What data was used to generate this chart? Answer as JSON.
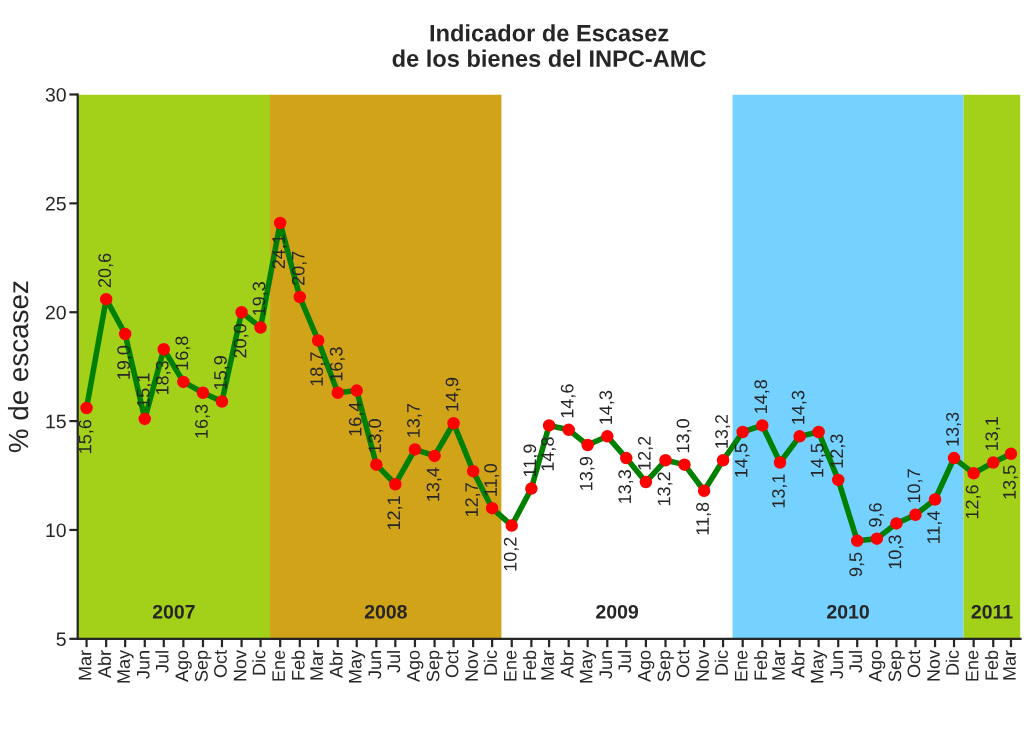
{
  "chart_data": {
    "type": "line",
    "title": "Indicador de Escasez\nde los bienes del INPC-AMC",
    "ylabel": "% de escasez",
    "x": [
      "2007-03",
      "2007-04",
      "2007-05",
      "2007-06",
      "2007-07",
      "2007-08",
      "2007-09",
      "2007-10",
      "2007-11",
      "2007-12",
      "2008-01",
      "2008-02",
      "2008-03",
      "2008-04",
      "2008-05",
      "2008-06",
      "2008-07",
      "2008-08",
      "2008-09",
      "2008-10",
      "2008-11",
      "2008-12",
      "2009-01",
      "2009-02",
      "2009-03",
      "2009-04",
      "2009-05",
      "2009-06",
      "2009-07",
      "2009-08",
      "2009-09",
      "2009-10",
      "2009-11",
      "2009-12",
      "2010-01",
      "2010-02",
      "2010-03",
      "2010-04",
      "2010-05",
      "2010-06",
      "2010-07",
      "2010-08",
      "2010-09",
      "2010-10",
      "2010-11",
      "2010-12",
      "2011-01",
      "2011-02",
      "2011-03"
    ],
    "series": [
      {
        "color": "#008000",
        "values": [
          15.6,
          20.6,
          19.0,
          15.1,
          18.3,
          16.8,
          16.3,
          15.9,
          20.0,
          19.3,
          24.1,
          20.7,
          18.7,
          16.3,
          16.4,
          13.0,
          12.1,
          13.7,
          13.4,
          14.9,
          12.7,
          11.0,
          10.2,
          11.9,
          14.8,
          14.6,
          13.9,
          14.3,
          13.3,
          12.2,
          13.2,
          13.0,
          11.8,
          13.2,
          14.5,
          14.8,
          13.1,
          14.3,
          14.5,
          12.3,
          9.5,
          9.6,
          10.3,
          10.7,
          11.4,
          13.3,
          12.6,
          13.1,
          13.5
        ]
      }
    ],
    "value_labels": [
      "15,6",
      "20,6",
      "19,0",
      "15,1",
      "18,3",
      "16,8",
      "16,3",
      "15,9",
      "20,0",
      "19,3",
      "24,1",
      "20,7",
      "18,7",
      "16,3",
      "16,4",
      "13,0",
      "12,1",
      "13,7",
      "13,4",
      "14,9",
      "12,7",
      "11,0",
      "10,2",
      "11,9",
      "14,8",
      "14,6",
      "13,9",
      "14,3",
      "13,3",
      "12,2",
      "13,2",
      "13,0",
      "11,8",
      "13,2",
      "14,5",
      "14,8",
      "13,1",
      "14,3",
      "14,5",
      "12,3",
      "9,5",
      "9,6",
      "10,3",
      "10,7",
      "11,4",
      "13,3",
      "12,6",
      "13,1",
      "13,5"
    ],
    "marker": "circle",
    "line_style": "solid",
    "grid": false,
    "legend": false,
    "xlim": [
      "2007-02-15",
      "2011-03-16"
    ],
    "xticks": [
      {
        "value": "2007-03",
        "label": "Mar"
      },
      {
        "value": "2007-04",
        "label": "Abr"
      },
      {
        "value": "2007-05",
        "label": "May"
      },
      {
        "value": "2007-06",
        "label": "Jun"
      },
      {
        "value": "2007-07",
        "label": "Jul"
      },
      {
        "value": "2007-08",
        "label": "Ago"
      },
      {
        "value": "2007-09",
        "label": "Sep"
      },
      {
        "value": "2007-10",
        "label": "Oct"
      },
      {
        "value": "2007-11",
        "label": "Nov"
      },
      {
        "value": "2007-12",
        "label": "Dic"
      },
      {
        "value": "2008-01",
        "label": "Ene"
      },
      {
        "value": "2008-02",
        "label": "Feb"
      },
      {
        "value": "2008-03",
        "label": "Mar"
      },
      {
        "value": "2008-04",
        "label": "Abr"
      },
      {
        "value": "2008-05",
        "label": "May"
      },
      {
        "value": "2008-06",
        "label": "Jun"
      },
      {
        "value": "2008-07",
        "label": "Jul"
      },
      {
        "value": "2008-08",
        "label": "Ago"
      },
      {
        "value": "2008-09",
        "label": "Sep"
      },
      {
        "value": "2008-10",
        "label": "Oct"
      },
      {
        "value": "2008-11",
        "label": "Nov"
      },
      {
        "value": "2008-12",
        "label": "Dic"
      },
      {
        "value": "2009-01",
        "label": "Ene"
      },
      {
        "value": "2009-02",
        "label": "Feb"
      },
      {
        "value": "2009-03",
        "label": "Mar"
      },
      {
        "value": "2009-04",
        "label": "Abr"
      },
      {
        "value": "2009-05",
        "label": "May"
      },
      {
        "value": "2009-06",
        "label": "Jun"
      },
      {
        "value": "2009-07",
        "label": "Jul"
      },
      {
        "value": "2009-08",
        "label": "Ago"
      },
      {
        "value": "2009-09",
        "label": "Sep"
      },
      {
        "value": "2009-10",
        "label": "Oct"
      },
      {
        "value": "2009-11",
        "label": "Nov"
      },
      {
        "value": "2009-12",
        "label": "Dic"
      },
      {
        "value": "2010-01",
        "label": "Ene"
      },
      {
        "value": "2010-02",
        "label": "Feb"
      },
      {
        "value": "2010-03",
        "label": "Mar"
      },
      {
        "value": "2010-04",
        "label": "Abr"
      },
      {
        "value": "2010-05",
        "label": "May"
      },
      {
        "value": "2010-06",
        "label": "Jun"
      },
      {
        "value": "2010-07",
        "label": "Jul"
      },
      {
        "value": "2010-08",
        "label": "Ago"
      },
      {
        "value": "2010-09",
        "label": "Sep"
      },
      {
        "value": "2010-10",
        "label": "Oct"
      },
      {
        "value": "2010-11",
        "label": "Nov"
      },
      {
        "value": "2010-12",
        "label": "Dic"
      },
      {
        "value": "2011-01",
        "label": "Ene"
      },
      {
        "value": "2011-02",
        "label": "Feb"
      },
      {
        "value": "2011-03",
        "label": "Mar"
      }
    ],
    "ylim": [
      5,
      30
    ],
    "yticks": [
      5,
      10,
      15,
      20,
      25,
      30
    ],
    "bands": [
      {
        "axis": "x",
        "from": "2007-02-15",
        "to": "2007-12-16",
        "label": "2007",
        "color": "#99cc00"
      },
      {
        "axis": "x",
        "from": "2007-12-16",
        "to": "2008-12-16",
        "label": "2008",
        "color": "#cc9900"
      },
      {
        "axis": "x",
        "from": "2008-12-16",
        "to": "2009-12-16",
        "label": "2009",
        "color": "#ffffff"
      },
      {
        "axis": "x",
        "from": "2009-12-16",
        "to": "2010-12-16",
        "label": "2010",
        "color": "#66ccff"
      },
      {
        "axis": "x",
        "from": "2010-12-16",
        "to": "2011-03-16",
        "label": "2011",
        "color": "#99cc00"
      }
    ]
  }
}
